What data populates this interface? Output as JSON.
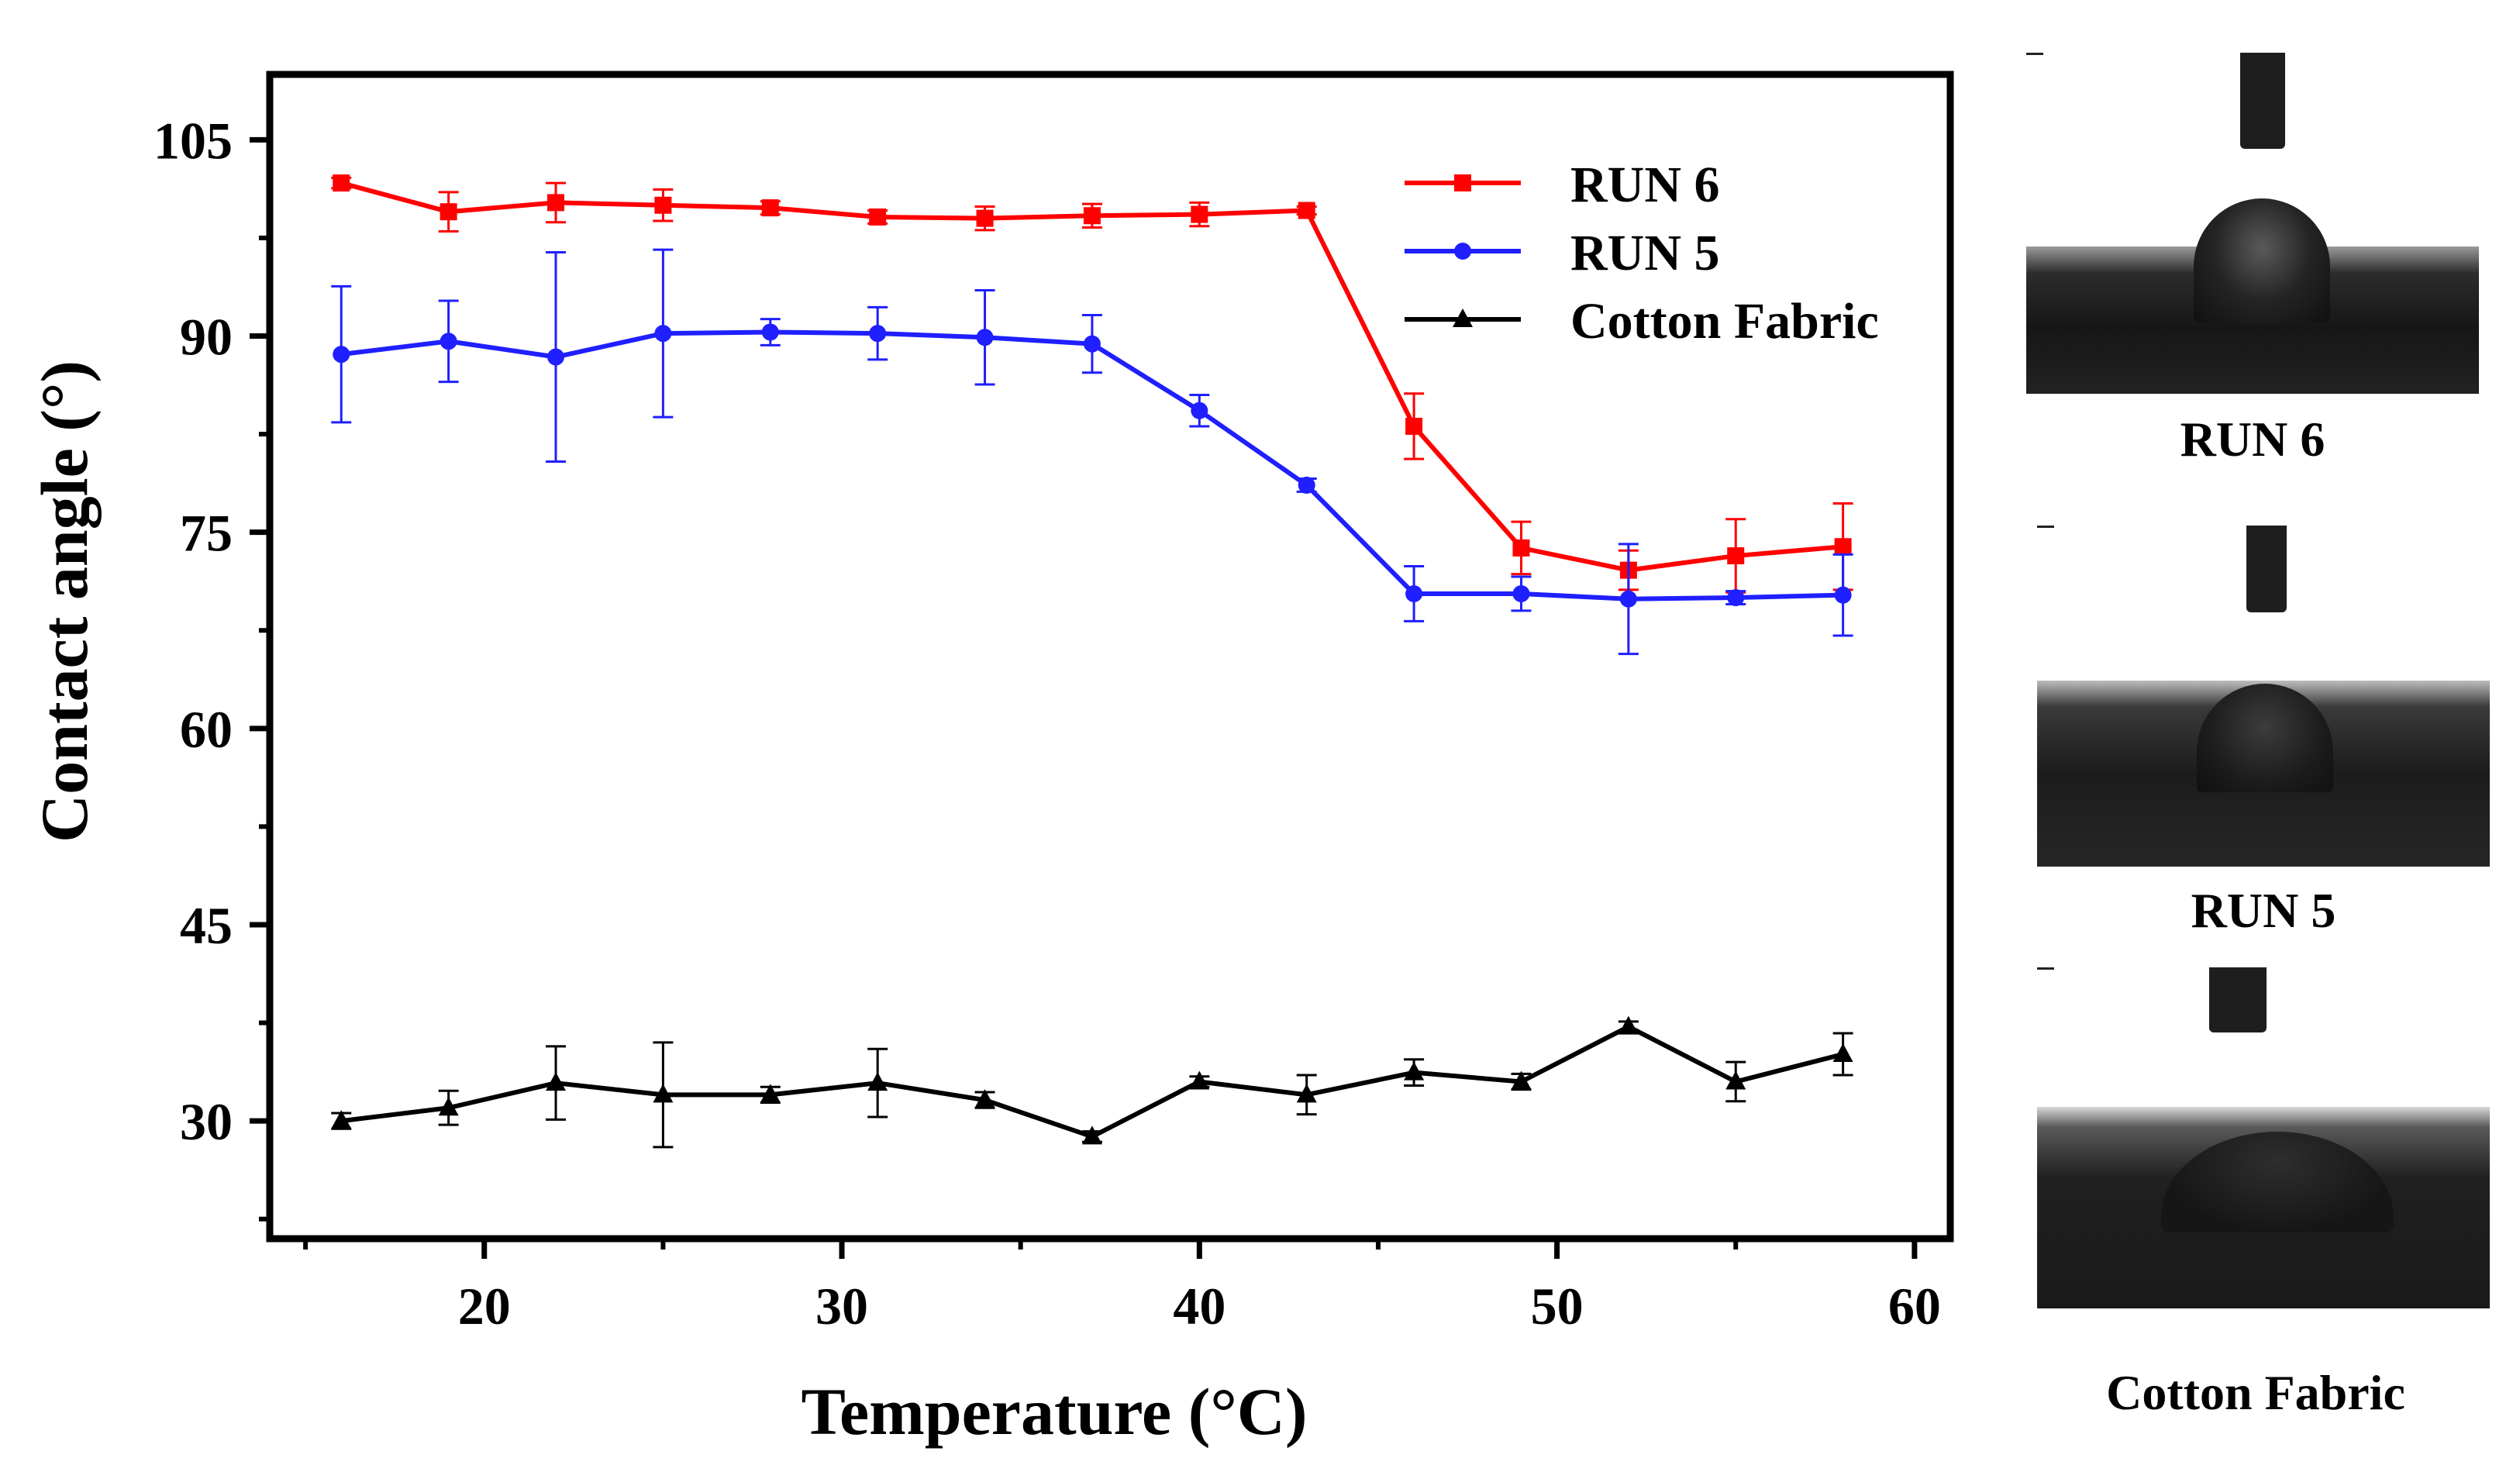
{
  "chart_data": {
    "type": "line",
    "xlabel": "Temperature (°C)",
    "ylabel": "Contact angle (°)",
    "xlim": [
      14,
      61
    ],
    "ylim": [
      21,
      110
    ],
    "xticks": [
      20,
      30,
      40,
      50,
      60
    ],
    "yticks": [
      30,
      45,
      60,
      75,
      90,
      105
    ],
    "legend_position": "top-right",
    "x": [
      16,
      19,
      22,
      25,
      28,
      31,
      34,
      37,
      40,
      43,
      46,
      49,
      52,
      55,
      58
    ],
    "series": [
      {
        "name": "RUN 6",
        "color": "#ff0000",
        "marker": "square",
        "values": [
          101.7,
          99.5,
          100.2,
          100.0,
          99.8,
          99.1,
          99.0,
          99.2,
          99.3,
          99.6,
          83.1,
          73.8,
          72.1,
          73.2,
          73.9
        ],
        "errors": [
          0.4,
          1.5,
          1.5,
          1.2,
          0.5,
          0.5,
          0.9,
          0.9,
          0.9,
          0.3,
          2.5,
          2.0,
          1.5,
          2.8,
          3.3
        ]
      },
      {
        "name": "RUN 5",
        "color": "#1f1fff",
        "marker": "circle",
        "values": [
          88.6,
          89.6,
          88.4,
          90.2,
          90.3,
          90.2,
          89.9,
          89.4,
          84.3,
          78.6,
          70.3,
          70.3,
          69.9,
          70.0,
          70.2
        ],
        "errors": [
          5.2,
          3.1,
          8.0,
          6.4,
          1.0,
          2.0,
          3.6,
          2.2,
          1.2,
          0.5,
          2.1,
          1.3,
          4.2,
          0.5,
          3.1
        ]
      },
      {
        "name": "Cotton Fabric",
        "color": "#000000",
        "marker": "triangle",
        "values": [
          30.0,
          31.0,
          32.9,
          32.0,
          32.0,
          32.9,
          31.6,
          28.8,
          33.0,
          32.0,
          33.7,
          33.0,
          37.2,
          33.0,
          35.1
        ],
        "errors": [
          0.6,
          1.3,
          2.8,
          4.0,
          0.6,
          2.6,
          0.6,
          0.4,
          0.4,
          1.5,
          1.0,
          0.6,
          0.4,
          1.5,
          1.6
        ]
      }
    ]
  },
  "photos": [
    {
      "caption": "RUN 6"
    },
    {
      "caption": "RUN 5"
    },
    {
      "caption": "Cotton Fabric"
    }
  ]
}
